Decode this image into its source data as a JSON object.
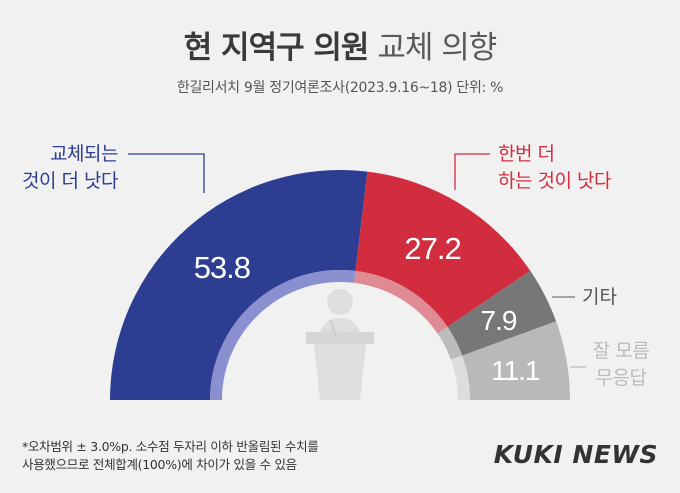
{
  "header": {
    "title_bold": "현 지역구 의원",
    "title_light": "교체 의향",
    "subtitle": "한길리서치 9월 정기여론조사(2023.9.16~18) 단위: %"
  },
  "chart_data": {
    "type": "pie",
    "variant": "half-donut",
    "unit": "%",
    "categories": [
      "교체되는 것이 더 낫다",
      "한번 더 하는 것이 낫다",
      "기타",
      "잘 모름 무응답"
    ],
    "values": [
      53.8,
      27.2,
      7.9,
      11.1
    ],
    "value_labels": [
      "53.8",
      "27.2",
      "7.9",
      "11.1"
    ],
    "label_lines": [
      [
        "교체되는",
        "것이 더 낫다"
      ],
      [
        "한번 더",
        "하는 것이 낫다"
      ],
      [
        "기타"
      ],
      [
        "잘 모름",
        "무응답"
      ]
    ],
    "colors": [
      "#2d3d92",
      "#d12d3f",
      "#777777",
      "#b9b9b9"
    ],
    "label_colors": [
      "#2d3d92",
      "#d12d3f",
      "#555555",
      "#bbbbbb"
    ],
    "inner_colors": [
      "#8a8fd0",
      "#e08a94",
      "#bcbcbc",
      "#dddddd"
    ]
  },
  "footnote": {
    "line1": "*오차범위 ± 3.0%p. 소수점 두자리 이하 반올림된 수치를",
    "line2": "사용했으므로 전체합계(100%)에 차이가 있을 수 있음"
  },
  "brand": "KUKI NEWS",
  "icon": "podium-speaker-icon"
}
